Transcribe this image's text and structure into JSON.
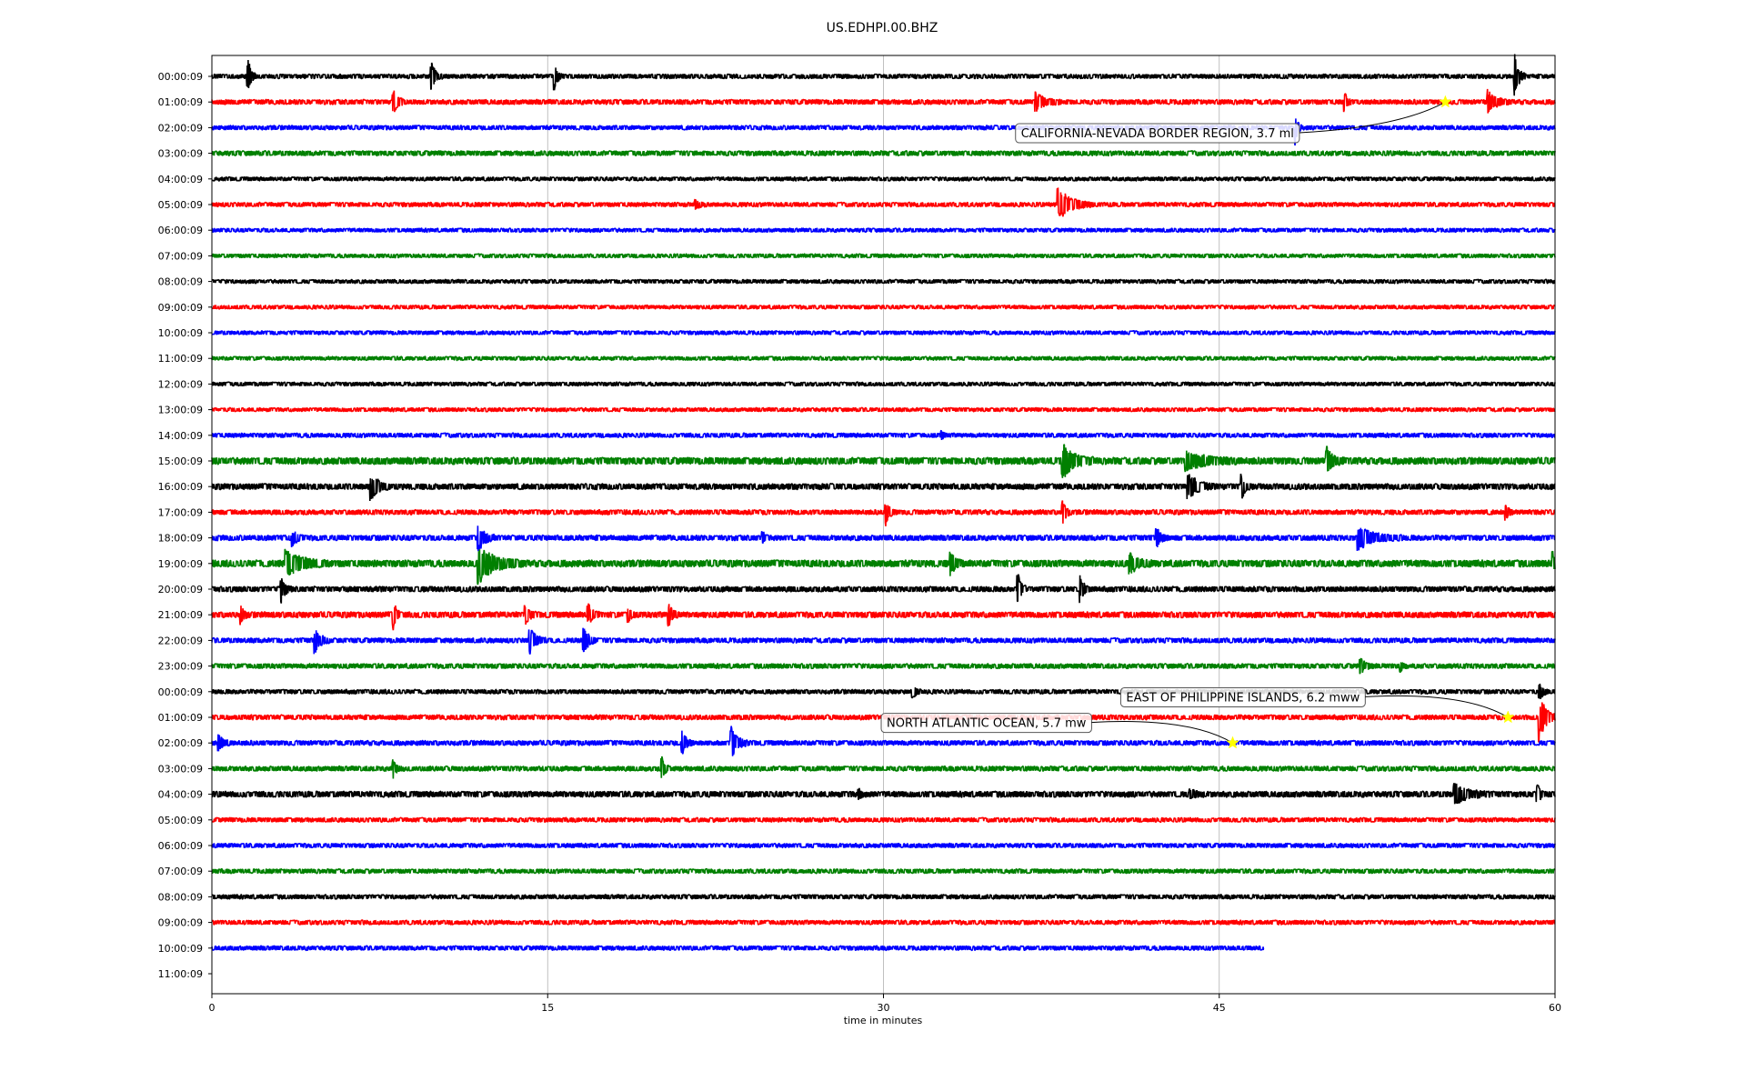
{
  "chart_data": {
    "type": "line",
    "title": "US.EDHPI.00.BHZ",
    "xlabel": "time in minutes",
    "ylabel": "",
    "xlim": [
      0,
      60
    ],
    "x_ticks": [
      "0",
      "15",
      "30",
      "45",
      "60"
    ],
    "x_tick_values": [
      0,
      15,
      30,
      45,
      60
    ],
    "grid": "vertical",
    "color_cycle": [
      "#000000",
      "#ff0000",
      "#0000ff",
      "#008000"
    ],
    "row_labels": [
      "00:00:09",
      "01:00:09",
      "02:00:09",
      "03:00:09",
      "04:00:09",
      "05:00:09",
      "06:00:09",
      "07:00:09",
      "08:00:09",
      "09:00:09",
      "10:00:09",
      "11:00:09",
      "12:00:09",
      "13:00:09",
      "14:00:09",
      "15:00:09",
      "16:00:09",
      "17:00:09",
      "18:00:09",
      "19:00:09",
      "20:00:09",
      "21:00:09",
      "22:00:09",
      "23:00:09",
      "00:00:09",
      "01:00:09",
      "02:00:09",
      "03:00:09",
      "04:00:09",
      "05:00:09",
      "06:00:09",
      "07:00:09",
      "08:00:09",
      "09:00:09",
      "10:00:09",
      "11:00:09"
    ],
    "trace_end_minutes": [
      60,
      60,
      60,
      60,
      60,
      60,
      60,
      60,
      60,
      60,
      60,
      60,
      60,
      60,
      60,
      60,
      60,
      60,
      60,
      60,
      60,
      60,
      60,
      60,
      60,
      60,
      60,
      60,
      60,
      60,
      60,
      60,
      60,
      60,
      47,
      0
    ],
    "noise_level": [
      0.18,
      0.2,
      0.18,
      0.2,
      0.16,
      0.18,
      0.16,
      0.16,
      0.16,
      0.16,
      0.16,
      0.16,
      0.16,
      0.16,
      0.18,
      0.28,
      0.24,
      0.2,
      0.22,
      0.28,
      0.22,
      0.24,
      0.2,
      0.2,
      0.18,
      0.2,
      0.2,
      0.2,
      0.24,
      0.18,
      0.18,
      0.18,
      0.18,
      0.18,
      0.18,
      0
    ],
    "bursts": [
      {
        "row": 0,
        "t": 1.6,
        "amp": 1.6,
        "dur": 0.4
      },
      {
        "row": 0,
        "t": 9.8,
        "amp": 1.2,
        "dur": 0.5
      },
      {
        "row": 0,
        "t": 15.3,
        "amp": 1.0,
        "dur": 0.4
      },
      {
        "row": 0,
        "t": 58.2,
        "amp": 1.6,
        "dur": 0.5
      },
      {
        "row": 1,
        "t": 8.1,
        "amp": 0.9,
        "dur": 0.6
      },
      {
        "row": 1,
        "t": 36.8,
        "amp": 0.7,
        "dur": 1.2
      },
      {
        "row": 1,
        "t": 50.6,
        "amp": 0.8,
        "dur": 0.3
      },
      {
        "row": 1,
        "t": 57.0,
        "amp": 0.9,
        "dur": 1.0
      },
      {
        "row": 2,
        "t": 48.4,
        "amp": 1.3,
        "dur": 0.3
      },
      {
        "row": 5,
        "t": 21.6,
        "amp": 0.4,
        "dur": 0.5
      },
      {
        "row": 5,
        "t": 37.8,
        "amp": 1.3,
        "dur": 1.6
      },
      {
        "row": 14,
        "t": 32.6,
        "amp": 0.3,
        "dur": 0.3
      },
      {
        "row": 15,
        "t": 38.0,
        "amp": 1.4,
        "dur": 1.4
      },
      {
        "row": 15,
        "t": 43.5,
        "amp": 0.7,
        "dur": 2.5
      },
      {
        "row": 15,
        "t": 49.8,
        "amp": 1.0,
        "dur": 0.8
      },
      {
        "row": 16,
        "t": 7.1,
        "amp": 1.1,
        "dur": 0.9
      },
      {
        "row": 16,
        "t": 43.6,
        "amp": 1.0,
        "dur": 1.2
      },
      {
        "row": 16,
        "t": 46.0,
        "amp": 1.1,
        "dur": 0.4
      },
      {
        "row": 17,
        "t": 30.1,
        "amp": 1.0,
        "dur": 0.5
      },
      {
        "row": 17,
        "t": 38.0,
        "amp": 1.0,
        "dur": 0.4
      },
      {
        "row": 17,
        "t": 57.8,
        "amp": 0.6,
        "dur": 0.4
      },
      {
        "row": 18,
        "t": 3.6,
        "amp": 0.6,
        "dur": 0.6
      },
      {
        "row": 18,
        "t": 11.9,
        "amp": 1.1,
        "dur": 0.8
      },
      {
        "row": 18,
        "t": 24.6,
        "amp": 0.4,
        "dur": 0.4
      },
      {
        "row": 18,
        "t": 42.2,
        "amp": 0.8,
        "dur": 0.5
      },
      {
        "row": 18,
        "t": 51.2,
        "amp": 0.9,
        "dur": 2.0
      },
      {
        "row": 19,
        "t": 3.3,
        "amp": 1.0,
        "dur": 2.0
      },
      {
        "row": 19,
        "t": 11.9,
        "amp": 1.5,
        "dur": 2.0
      },
      {
        "row": 19,
        "t": 33.0,
        "amp": 0.8,
        "dur": 0.6
      },
      {
        "row": 19,
        "t": 41.0,
        "amp": 0.8,
        "dur": 1.0
      },
      {
        "row": 19,
        "t": 59.9,
        "amp": 0.8,
        "dur": 0.3
      },
      {
        "row": 20,
        "t": 3.1,
        "amp": 1.0,
        "dur": 0.5
      },
      {
        "row": 20,
        "t": 36.0,
        "amp": 1.3,
        "dur": 0.4
      },
      {
        "row": 20,
        "t": 38.8,
        "amp": 1.0,
        "dur": 0.4
      },
      {
        "row": 21,
        "t": 1.3,
        "amp": 0.6,
        "dur": 0.4
      },
      {
        "row": 21,
        "t": 8.1,
        "amp": 1.1,
        "dur": 0.4
      },
      {
        "row": 21,
        "t": 14.0,
        "amp": 0.7,
        "dur": 0.5
      },
      {
        "row": 21,
        "t": 16.8,
        "amp": 0.9,
        "dur": 0.5
      },
      {
        "row": 21,
        "t": 18.6,
        "amp": 0.7,
        "dur": 0.3
      },
      {
        "row": 21,
        "t": 20.4,
        "amp": 0.9,
        "dur": 0.5
      },
      {
        "row": 22,
        "t": 4.6,
        "amp": 1.0,
        "dur": 0.7
      },
      {
        "row": 22,
        "t": 14.2,
        "amp": 1.0,
        "dur": 0.8
      },
      {
        "row": 22,
        "t": 16.6,
        "amp": 1.2,
        "dur": 0.6
      },
      {
        "row": 23,
        "t": 51.3,
        "amp": 0.6,
        "dur": 0.6
      },
      {
        "row": 23,
        "t": 53.1,
        "amp": 0.4,
        "dur": 0.3
      },
      {
        "row": 24,
        "t": 31.3,
        "amp": 0.6,
        "dur": 0.4
      },
      {
        "row": 24,
        "t": 59.3,
        "amp": 0.7,
        "dur": 0.5
      },
      {
        "row": 25,
        "t": 59.3,
        "amp": 1.9,
        "dur": 0.8
      },
      {
        "row": 26,
        "t": 0.3,
        "amp": 0.6,
        "dur": 0.6
      },
      {
        "row": 26,
        "t": 21.0,
        "amp": 1.0,
        "dur": 0.5
      },
      {
        "row": 26,
        "t": 23.2,
        "amp": 1.2,
        "dur": 0.8
      },
      {
        "row": 27,
        "t": 8.1,
        "amp": 0.7,
        "dur": 0.4
      },
      {
        "row": 27,
        "t": 20.1,
        "amp": 0.9,
        "dur": 0.4
      },
      {
        "row": 28,
        "t": 28.9,
        "amp": 0.4,
        "dur": 0.3
      },
      {
        "row": 28,
        "t": 43.7,
        "amp": 0.4,
        "dur": 0.6
      },
      {
        "row": 28,
        "t": 55.5,
        "amp": 0.8,
        "dur": 1.6
      },
      {
        "row": 28,
        "t": 59.2,
        "amp": 0.7,
        "dur": 0.4
      }
    ],
    "annotations": [
      {
        "text": "CALIFORNIA-NEVADA BORDER REGION, 3.7 ml",
        "row": 1,
        "minute": 55.1,
        "box_minute": 35.9,
        "box_row": 2.2
      },
      {
        "text": "EAST OF PHILIPPINE ISLANDS, 6.2 mww",
        "row": 25,
        "minute": 57.9,
        "box_minute": 40.6,
        "box_row": 24.2
      },
      {
        "text": "NORTH ATLANTIC OCEAN, 5.7 mw",
        "row": 26,
        "minute": 45.6,
        "box_minute": 29.9,
        "box_row": 25.2
      }
    ],
    "marker_color": "#ffff00"
  }
}
